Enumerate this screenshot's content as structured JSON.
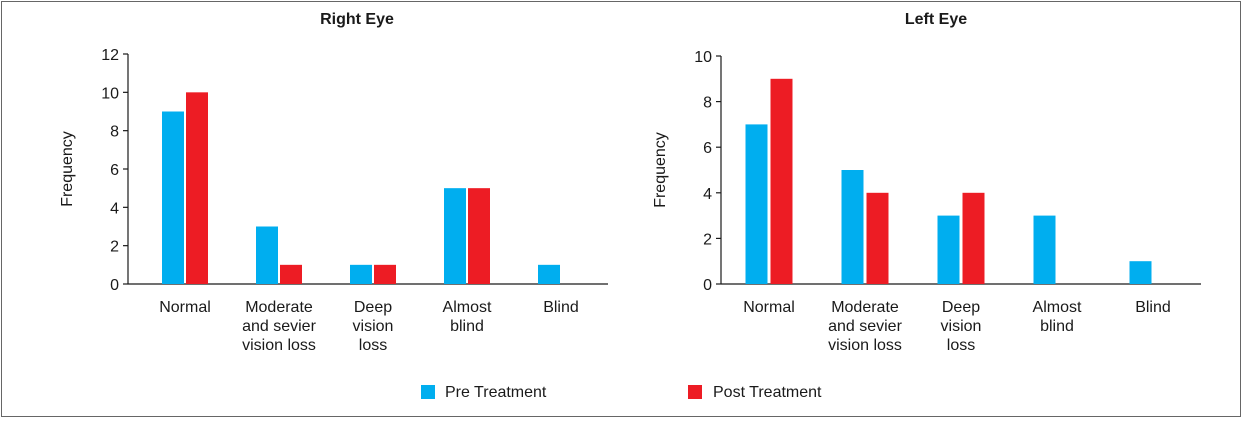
{
  "chart_data": [
    {
      "type": "bar",
      "title": "Right Eye",
      "xlabel": "",
      "ylabel": "Frequency",
      "ylim": [
        0,
        12
      ],
      "yticks": [
        0,
        2,
        4,
        6,
        8,
        10,
        12
      ],
      "categories": [
        [
          "Normal"
        ],
        [
          "Moderate",
          "and sevier",
          "vision loss"
        ],
        [
          "Deep",
          "vision",
          "loss"
        ],
        [
          "Almost",
          "blind"
        ],
        [
          "Blind"
        ]
      ],
      "series": [
        {
          "name": "Pre Treatment",
          "color": "#00aeef",
          "values": [
            9,
            3,
            1,
            5,
            1
          ]
        },
        {
          "name": "Post Treatment",
          "color": "#ed1c24",
          "values": [
            10,
            1,
            1,
            5,
            0
          ]
        }
      ]
    },
    {
      "type": "bar",
      "title": "Left Eye",
      "xlabel": "",
      "ylabel": "Frequency",
      "ylim": [
        0,
        10
      ],
      "yticks": [
        0,
        2,
        4,
        6,
        8,
        10
      ],
      "categories": [
        [
          "Normal"
        ],
        [
          "Moderate",
          "and sevier",
          "vision loss"
        ],
        [
          "Deep",
          "vision",
          "loss"
        ],
        [
          "Almost",
          "blind"
        ],
        [
          "Blind"
        ]
      ],
      "series": [
        {
          "name": "Pre Treatment",
          "color": "#00aeef",
          "values": [
            7,
            5,
            3,
            3,
            1
          ]
        },
        {
          "name": "Post Treatment",
          "color": "#ed1c24",
          "values": [
            9,
            4,
            4,
            0,
            0
          ]
        }
      ]
    }
  ],
  "legend": {
    "position": "bottom-center",
    "items": [
      {
        "label": "Pre Treatment",
        "color": "#00aeef"
      },
      {
        "label": "Post Treatment",
        "color": "#ed1c24"
      }
    ]
  }
}
